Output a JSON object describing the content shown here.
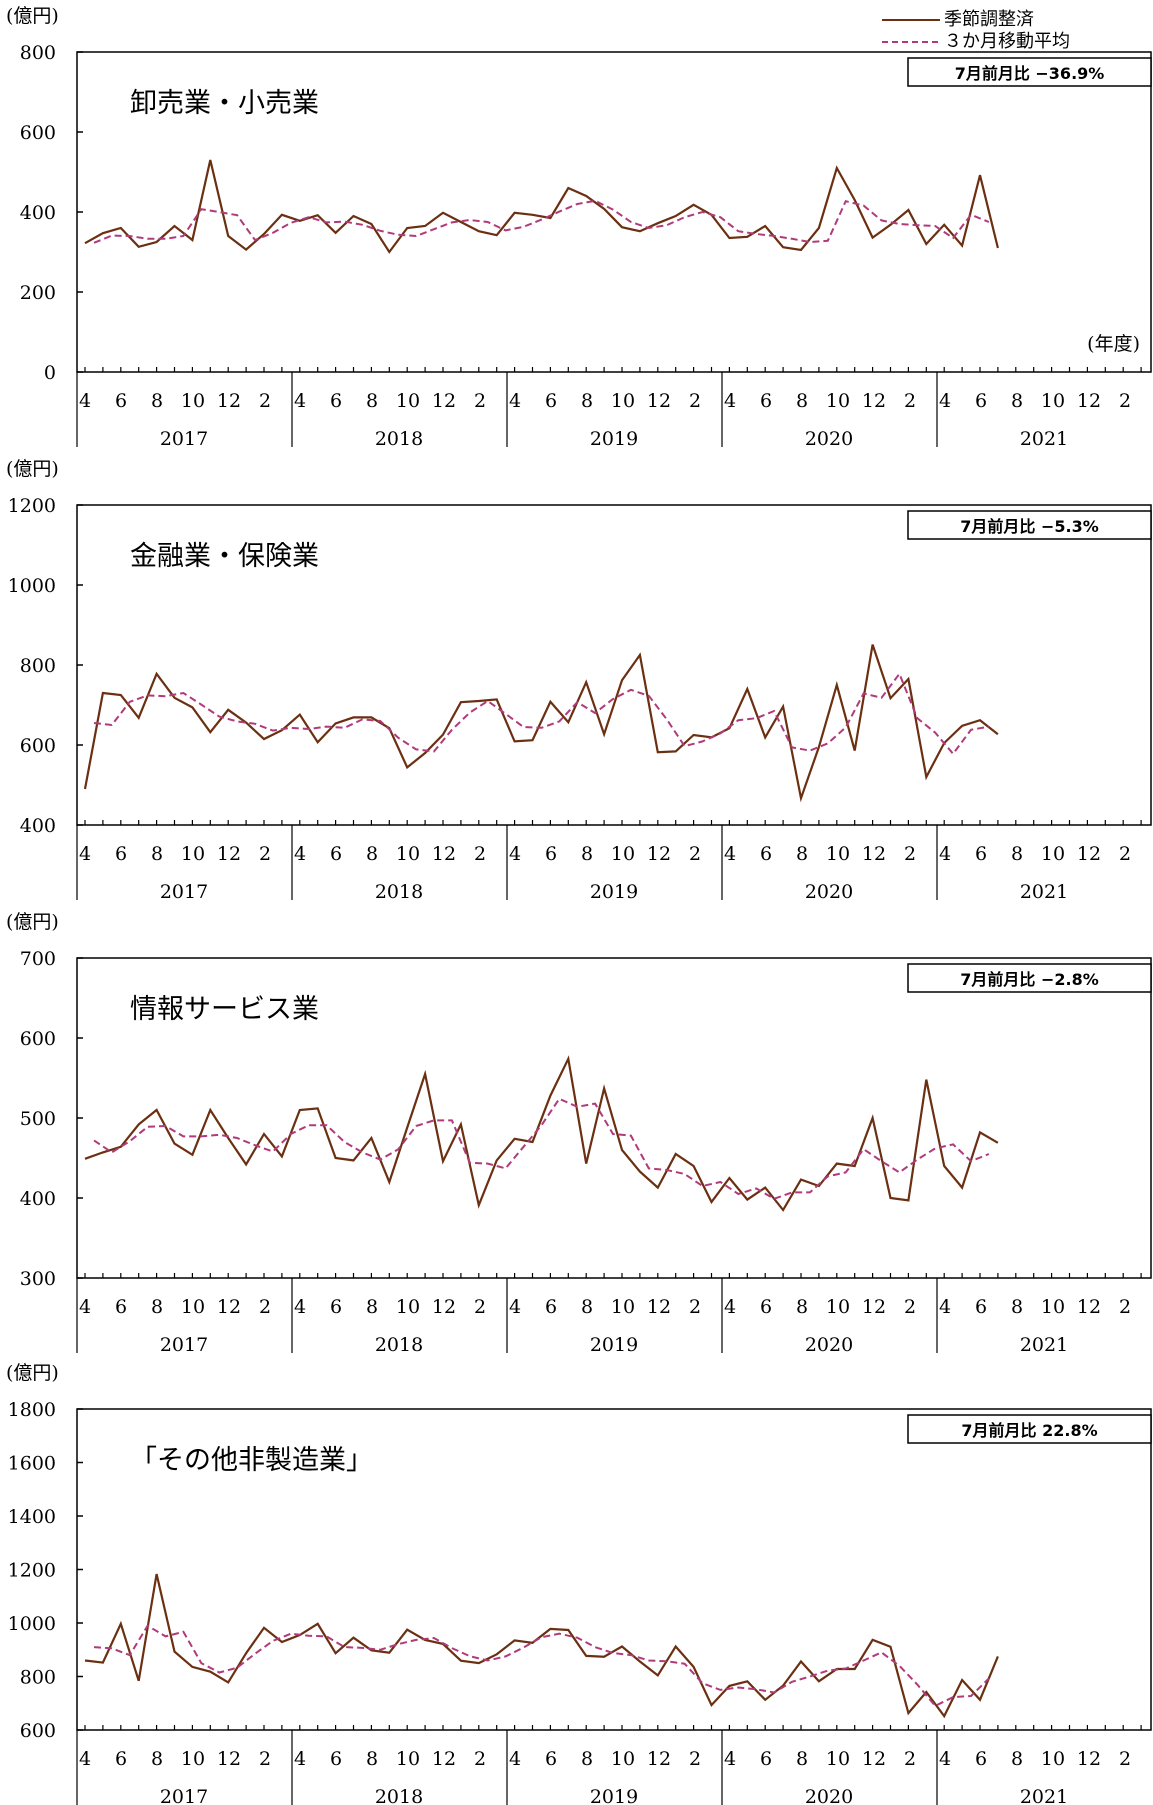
{
  "legend": {
    "seasonal_label": "季節調整済",
    "moving_avg_label": "３か月移動平均",
    "colors": {
      "seasonal": "#6B2F12",
      "moving_avg": "#B03A7A"
    }
  },
  "fiscal_year_label": "(年度)",
  "chart_data": [
    {
      "type": "line",
      "title": "卸売業・小売業",
      "unit_label": "(億円)",
      "badge": "7月前月比  −36.9%",
      "ylim": [
        0,
        800
      ],
      "yticks": [
        "0",
        "200",
        "400",
        "600",
        "800"
      ],
      "month_ticks": [
        "4",
        "6",
        "8",
        "10",
        "12",
        "2"
      ],
      "years": [
        "2017",
        "2018",
        "2019",
        "2020",
        "2021"
      ],
      "x_start": "2017-04",
      "series": [
        {
          "name": "季節調整済",
          "values": [
            322,
            347,
            360,
            313,
            325,
            365,
            330,
            530,
            340,
            306,
            345,
            393,
            378,
            392,
            348,
            390,
            370,
            300,
            360,
            365,
            398,
            375,
            352,
            342,
            398,
            393,
            385,
            460,
            440,
            408,
            362,
            352,
            372,
            390,
            418,
            393,
            335,
            338,
            365,
            312,
            305,
            360,
            510,
            430,
            336,
            368,
            405,
            320,
            368,
            316,
            492,
            310
          ]
        },
        {
          "name": "３か月移動平均",
          "values": [
            323,
            341,
            340,
            333,
            333,
            340,
            407,
            400,
            392,
            330,
            348,
            373,
            387,
            374,
            376,
            368,
            353,
            343,
            340,
            357,
            374,
            380,
            375,
            354,
            363,
            381,
            401,
            420,
            428,
            406,
            375,
            360,
            367,
            387,
            400,
            387,
            352,
            345,
            340,
            333,
            325,
            328,
            427,
            416,
            379,
            370,
            367,
            365,
            335,
            393,
            375
          ]
        }
      ]
    },
    {
      "type": "line",
      "title": "金融業・保険業",
      "unit_label": "(億円)",
      "badge": "7月前月比  −5.3%",
      "ylim": [
        400,
        1200
      ],
      "yticks": [
        "400",
        "600",
        "800",
        "1000",
        "1200"
      ],
      "month_ticks": [
        "4",
        "6",
        "8",
        "10",
        "12",
        "2"
      ],
      "years": [
        "2017",
        "2018",
        "2019",
        "2020",
        "2021"
      ],
      "x_start": "2017-04",
      "series": [
        {
          "name": "季節調整済",
          "values": [
            490,
            730,
            725,
            668,
            778,
            718,
            694,
            632,
            688,
            656,
            615,
            637,
            676,
            607,
            654,
            669,
            669,
            642,
            544,
            580,
            626,
            707,
            710,
            714,
            609,
            612,
            708,
            657,
            757,
            627,
            762,
            825,
            582,
            584,
            625,
            619,
            642,
            740,
            619,
            696,
            467,
            595,
            750,
            586,
            851,
            717,
            765,
            520,
            605,
            648,
            662,
            627
          ]
        },
        {
          "name": "３か月移動平均",
          "values": [
            655,
            650,
            708,
            724,
            722,
            730,
            701,
            671,
            659,
            653,
            636,
            643,
            640,
            646,
            643,
            664,
            660,
            618,
            589,
            584,
            638,
            681,
            710,
            678,
            645,
            643,
            659,
            707,
            680,
            715,
            738,
            723,
            664,
            597,
            609,
            629,
            662,
            667,
            685,
            594,
            586,
            604,
            644,
            729,
            718,
            778,
            667,
            631,
            578,
            638,
            646
          ]
        }
      ]
    },
    {
      "type": "line",
      "title": "情報サービス業",
      "unit_label": "(億円)",
      "badge": "7月前月比  −2.8%",
      "ylim": [
        300,
        700
      ],
      "yticks": [
        "300",
        "400",
        "500",
        "600",
        "700"
      ],
      "month_ticks": [
        "4",
        "6",
        "8",
        "10",
        "12",
        "2"
      ],
      "years": [
        "2017",
        "2018",
        "2019",
        "2020",
        "2021"
      ],
      "x_start": "2017-04",
      "series": [
        {
          "name": "季節調整済",
          "values": [
            449,
            457,
            464,
            492,
            510,
            468,
            454,
            510,
            475,
            442,
            480,
            452,
            510,
            512,
            450,
            447,
            475,
            420,
            488,
            555,
            446,
            492,
            391,
            447,
            474,
            470,
            528,
            574,
            443,
            537,
            460,
            433,
            413,
            455,
            440,
            395,
            425,
            398,
            413,
            385,
            423,
            415,
            443,
            440,
            500,
            400,
            397,
            548,
            440,
            413,
            482,
            469
          ]
        },
        {
          "name": "３か月移動平均",
          "values": [
            472,
            457,
            471,
            489,
            490,
            477,
            477,
            479,
            475,
            466,
            458,
            480,
            491,
            491,
            470,
            457,
            448,
            461,
            490,
            497,
            497,
            444,
            443,
            437,
            464,
            491,
            524,
            514,
            518,
            480,
            478,
            437,
            435,
            430,
            415,
            420,
            405,
            412,
            399,
            407,
            407,
            427,
            432,
            461,
            446,
            432,
            448,
            462,
            467,
            446,
            455
          ]
        }
      ]
    },
    {
      "type": "line",
      "title": "「その他非製造業」",
      "unit_label": "(億円)",
      "badge": "7月前月比  22.8%",
      "ylim": [
        600,
        1800
      ],
      "yticks": [
        "600",
        "800",
        "1000",
        "1200",
        "1400",
        "1600",
        "1800"
      ],
      "month_ticks": [
        "4",
        "6",
        "8",
        "10",
        "12",
        "2"
      ],
      "years": [
        "2017",
        "2018",
        "2019",
        "2020",
        "2021"
      ],
      "x_start": "2017-04",
      "series": [
        {
          "name": "季節調整済",
          "values": [
            860,
            852,
            997,
            784,
            1183,
            893,
            836,
            818,
            778,
            887,
            982,
            929,
            955,
            997,
            887,
            945,
            898,
            889,
            975,
            937,
            922,
            859,
            850,
            883,
            935,
            926,
            978,
            974,
            877,
            874,
            912,
            856,
            804,
            912,
            836,
            693,
            765,
            782,
            713,
            766,
            856,
            782,
            828,
            828,
            937,
            911,
            663,
            742,
            652,
            787,
            713,
            875
          ]
        },
        {
          "name": "３か月移動平均",
          "values": [
            910,
            905,
            880,
            990,
            950,
            967,
            850,
            815,
            833,
            885,
            933,
            960,
            952,
            950,
            910,
            907,
            900,
            921,
            937,
            944,
            906,
            876,
            860,
            875,
            908,
            947,
            960,
            945,
            910,
            888,
            880,
            860,
            857,
            848,
            775,
            750,
            759,
            752,
            740,
            780,
            800,
            822,
            830,
            860,
            890,
            840,
            770,
            690,
            723,
            727,
            793
          ]
        }
      ]
    }
  ]
}
